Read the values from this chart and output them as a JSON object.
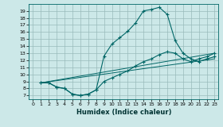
{
  "title": "",
  "xlabel": "Humidex (Indice chaleur)",
  "bg_color": "#cce8e8",
  "grid_color": "#99bbbb",
  "line_color": "#006666",
  "xlim": [
    -0.5,
    23.5
  ],
  "ylim": [
    6.5,
    20.0
  ],
  "xticks": [
    0,
    1,
    2,
    3,
    4,
    5,
    6,
    7,
    8,
    9,
    10,
    11,
    12,
    13,
    14,
    15,
    16,
    17,
    18,
    19,
    20,
    21,
    22,
    23
  ],
  "yticks": [
    7,
    8,
    9,
    10,
    11,
    12,
    13,
    14,
    15,
    16,
    17,
    18,
    19
  ],
  "curve1_x": [
    1,
    2,
    3,
    4,
    5,
    6,
    7,
    8,
    9,
    10,
    11,
    12,
    13,
    14,
    15,
    16,
    17,
    18,
    19,
    20,
    21,
    22,
    23
  ],
  "curve1_y": [
    8.8,
    8.8,
    8.2,
    8.0,
    7.2,
    7.0,
    7.2,
    7.8,
    12.6,
    14.3,
    15.2,
    16.1,
    17.3,
    19.0,
    19.2,
    19.5,
    18.5,
    14.8,
    13.0,
    12.2,
    11.8,
    12.2,
    12.5
  ],
  "curve2_x": [
    1,
    2,
    3,
    4,
    5,
    6,
    7,
    8,
    9,
    10,
    11,
    12,
    13,
    14,
    15,
    16,
    17,
    18,
    19,
    20,
    21,
    22,
    23
  ],
  "curve2_y": [
    8.8,
    8.8,
    8.2,
    8.0,
    7.2,
    7.0,
    7.2,
    7.8,
    9.0,
    9.5,
    10.0,
    10.5,
    11.2,
    11.8,
    12.2,
    12.8,
    13.2,
    13.0,
    12.2,
    11.8,
    12.2,
    12.5,
    13.0
  ],
  "line1_x": [
    1,
    23
  ],
  "line1_y": [
    8.8,
    13.0
  ],
  "line2_x": [
    1,
    23
  ],
  "line2_y": [
    8.8,
    12.2
  ],
  "xlabel_fontsize": 6,
  "tick_fontsize": 4.5
}
